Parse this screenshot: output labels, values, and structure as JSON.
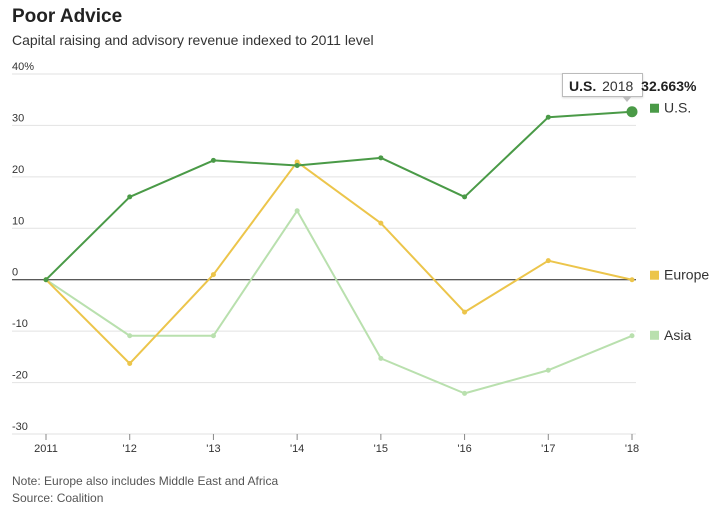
{
  "title": "Poor Advice",
  "subtitle": "Capital raising and advisory revenue indexed to 2011 level",
  "notes": {
    "note": "Note: Europe also includes Middle East and Africa",
    "source": "Source: Coalition"
  },
  "tooltip": {
    "series": "U.S.",
    "year": "2018",
    "value": "32.663%"
  },
  "chart_data": {
    "type": "line",
    "x": [
      "2011",
      "'12",
      "'13",
      "'14",
      "'15",
      "'16",
      "'17",
      "'18"
    ],
    "y_ticks": [
      "40%",
      "30",
      "20",
      "10",
      "0",
      "-10",
      "-20",
      "-30"
    ],
    "ylim": [
      -30,
      40
    ],
    "grid": true,
    "series": [
      {
        "name": "U.S.",
        "color": "#4a9a47",
        "values": [
          0,
          16.1,
          23.2,
          22.2,
          23.7,
          16.1,
          31.6,
          32.663
        ]
      },
      {
        "name": "Europe",
        "color": "#ecc54b",
        "values": [
          0,
          -16.3,
          1.0,
          22.9,
          11.0,
          -6.3,
          3.7,
          0.0
        ]
      },
      {
        "name": "Asia",
        "color": "#b9e0ae",
        "values": [
          0,
          -10.9,
          -10.9,
          13.4,
          -15.3,
          -22.1,
          -17.6,
          -10.9
        ]
      }
    ]
  }
}
